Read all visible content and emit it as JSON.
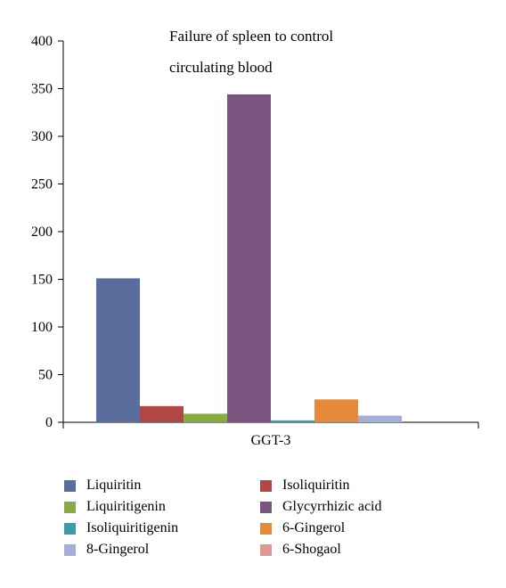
{
  "chart_data": {
    "type": "bar",
    "title_lines": [
      "Failure of spleen to control",
      "circulating blood"
    ],
    "xlabel": "",
    "ylabel": "",
    "categories": [
      "GGT-3"
    ],
    "ylim": [
      0,
      400
    ],
    "yticks": [
      0,
      50,
      100,
      150,
      200,
      250,
      300,
      350,
      400
    ],
    "grid": false,
    "legend_position": "bottom",
    "series": [
      {
        "name": "Liquiritin",
        "values": [
          151
        ],
        "color": "#5a6d9c"
      },
      {
        "name": "Isoliquiritin",
        "values": [
          17
        ],
        "color": "#b04744"
      },
      {
        "name": "Liquiritigenin",
        "values": [
          9
        ],
        "color": "#8aaa44"
      },
      {
        "name": "Glycyrrhizic acid",
        "values": [
          344
        ],
        "color": "#7a5580"
      },
      {
        "name": "Isoliquiritigenin",
        "values": [
          2
        ],
        "color": "#3d9aa8"
      },
      {
        "name": "6-Gingerol",
        "values": [
          24
        ],
        "color": "#e5893a"
      },
      {
        "name": "8-Gingerol",
        "values": [
          7
        ],
        "color": "#a3afd6"
      },
      {
        "name": "6-Shogaol",
        "values": [
          0
        ],
        "color": "#de9893"
      }
    ]
  }
}
